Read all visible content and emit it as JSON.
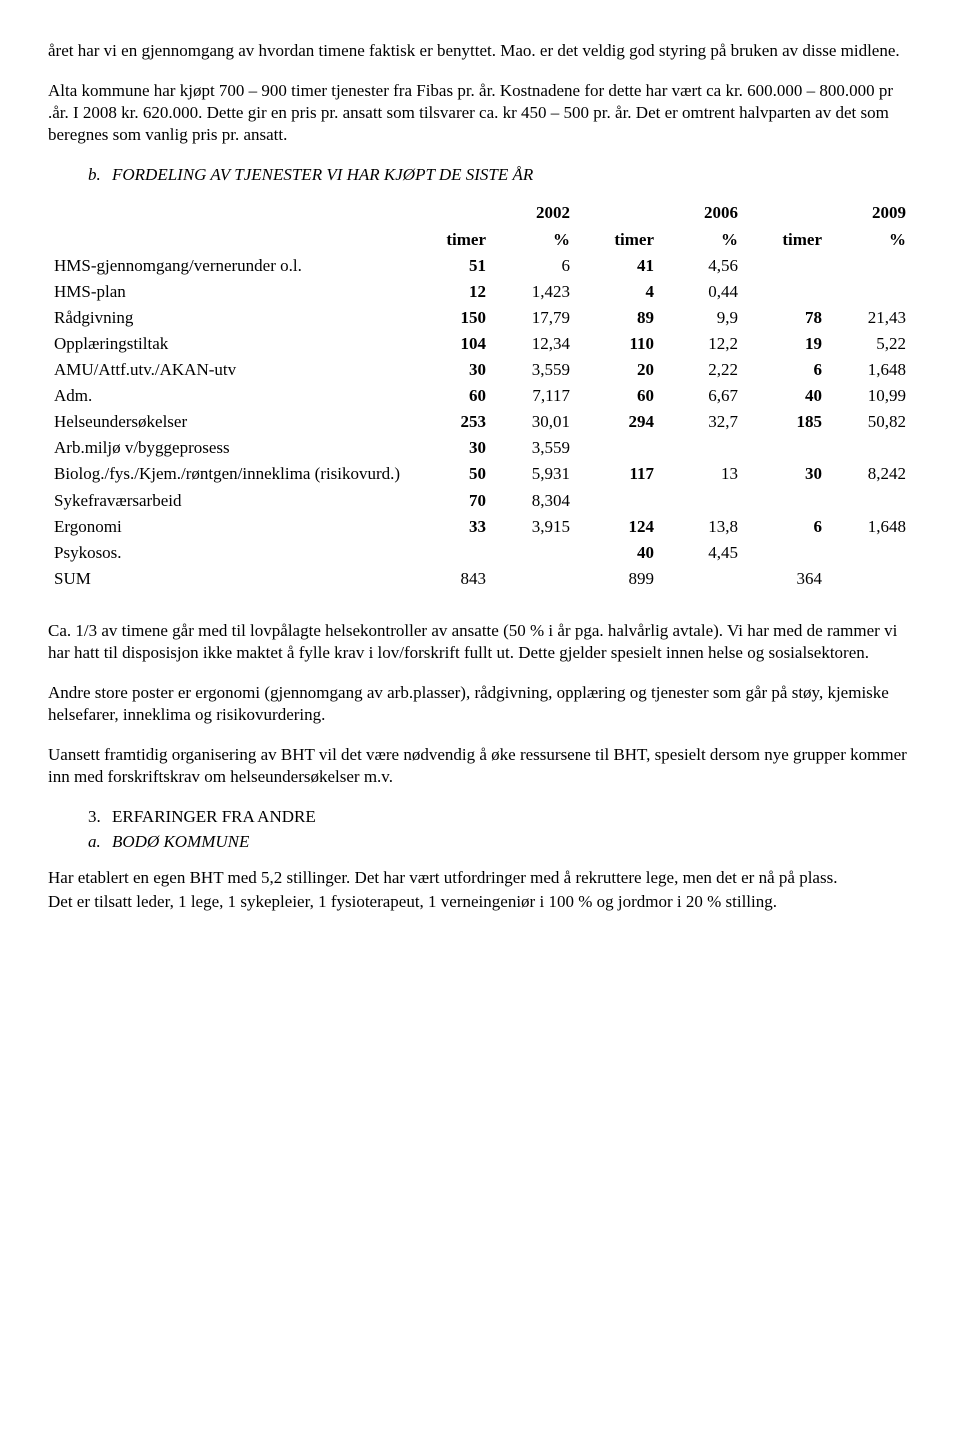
{
  "para1": "året har vi en gjennomgang av hvordan timene faktisk er benyttet. Mao. er det veldig god styring på bruken av disse midlene.",
  "para2": "Alta kommune har kjøpt  700 – 900 timer tjenester fra  Fibas pr. år. Kostnadene for dette har vært ca kr. 600.000 – 800.000 pr .år.  I 2008 kr. 620.000. Dette gir en pris pr. ansatt som tilsvarer ca. kr 450 – 500 pr. år. Det er omtrent halvparten av det som beregnes som vanlig pris pr. ansatt.",
  "heading_b_marker": "b.",
  "heading_b": "FORDELING AV TJENESTER VI HAR KJØPT DE SISTE ÅR",
  "years": [
    "2002",
    "2006",
    "2009"
  ],
  "col_timer": "timer",
  "col_pct": "%",
  "rows": [
    {
      "label": "HMS-gjennomgang/vernerunder o.l.",
      "t1": "51",
      "p1": "6",
      "t2": "41",
      "p2": "4,56",
      "t3": "",
      "p3": ""
    },
    {
      "label": "HMS-plan",
      "t1": "12",
      "p1": "1,423",
      "t2": "4",
      "p2": "0,44",
      "t3": "",
      "p3": ""
    },
    {
      "label": "Rådgivning",
      "t1": "150",
      "p1": "17,79",
      "t2": "89",
      "p2": "9,9",
      "t3": "78",
      "p3": "21,43"
    },
    {
      "label": "Opplæringstiltak",
      "t1": "104",
      "p1": "12,34",
      "t2": "110",
      "p2": "12,2",
      "t3": "19",
      "p3": "5,22"
    },
    {
      "label": "AMU/Attf.utv./AKAN-utv",
      "t1": "30",
      "p1": "3,559",
      "t2": "20",
      "p2": "2,22",
      "t3": "6",
      "p3": "1,648"
    },
    {
      "label": "Adm.",
      "t1": "60",
      "p1": "7,117",
      "t2": "60",
      "p2": "6,67",
      "t3": "40",
      "p3": "10,99"
    },
    {
      "label": "Helseundersøkelser",
      "t1": "253",
      "p1": "30,01",
      "t2": "294",
      "p2": "32,7",
      "t3": "185",
      "p3": "50,82"
    },
    {
      "label": "Arb.miljø v/byggeprosess",
      "t1": "30",
      "p1": "3,559",
      "t2": "",
      "p2": "",
      "t3": "",
      "p3": ""
    },
    {
      "label": "Biolog./fys./Kjem./røntgen/inneklima (risikovurd.)",
      "t1": "50",
      "p1": "5,931",
      "t2": "117",
      "p2": "13",
      "t3": "30",
      "p3": "8,242"
    },
    {
      "label": "Sykefraværsarbeid",
      "t1": "70",
      "p1": "8,304",
      "t2": "",
      "p2": "",
      "t3": "",
      "p3": ""
    },
    {
      "label": "Ergonomi",
      "t1": "33",
      "p1": "3,915",
      "t2": "124",
      "p2": "13,8",
      "t3": "6",
      "p3": "1,648"
    },
    {
      "label": "Psykosos.",
      "t1": "",
      "p1": "",
      "t2": "40",
      "p2": "4,45",
      "t3": "",
      "p3": ""
    }
  ],
  "sum_label": "SUM",
  "sum": {
    "t1": "843",
    "t2": "899",
    "t3": "364"
  },
  "para3": "Ca. 1/3 av timene går med til lovpålagte helsekontroller av ansatte (50 % i år pga. halvårlig avtale).  Vi har med de rammer vi har hatt til disposisjon ikke maktet å fylle krav i lov/forskrift fullt ut.  Dette gjelder spesielt innen helse og sosialsektoren.",
  "para4": "Andre store poster er ergonomi (gjennomgang av arb.plasser), rådgivning, opplæring  og tjenester som går på støy, kjemiske helsefarer, inneklima og risikovurdering.",
  "para5": "Uansett framtidig organisering av BHT vil det være nødvendig å øke ressursene til BHT, spesielt dersom nye grupper kommer inn med forskriftskrav om helseundersøkelser m.v.",
  "heading3_marker": "3.",
  "heading3": "ERFARINGER FRA ANDRE",
  "heading3a_marker": "a.",
  "heading3a": "BODØ KOMMUNE",
  "para6": "Har etablert en egen BHT med 5,2 stillinger.  Det har vært utfordringer med å rekruttere lege, men det er nå på plass.",
  "para7": "Det er tilsatt leder, 1 lege, 1 sykepleier, 1 fysioterapeut, 1 verneingeniør i 100 % og jordmor i 20 % stilling."
}
